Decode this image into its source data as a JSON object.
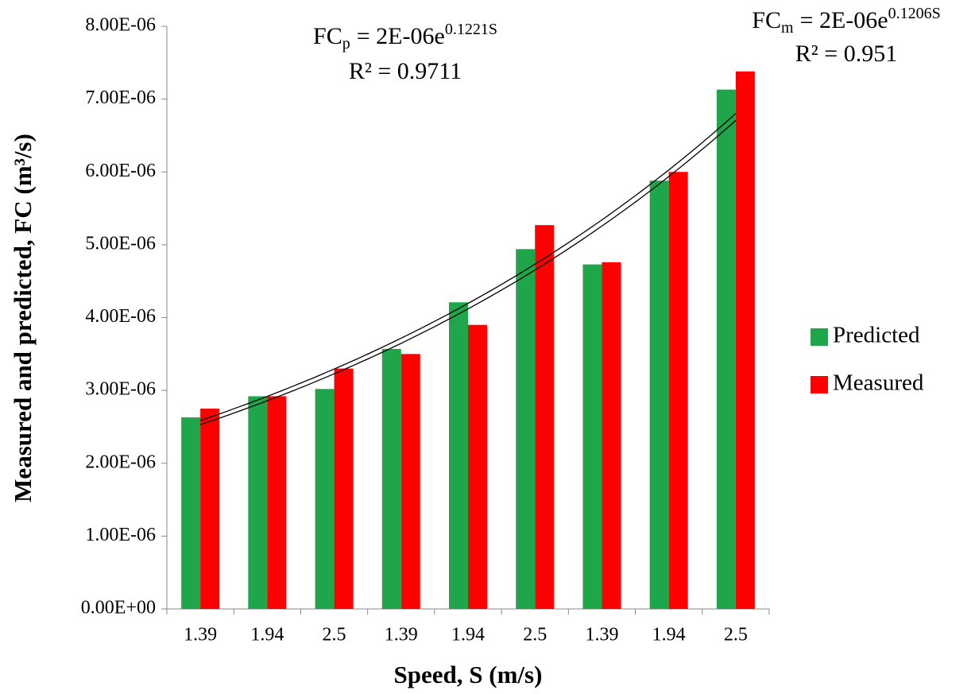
{
  "chart_data": {
    "type": "bar",
    "x_label": "Speed, S (m/s)",
    "y_label": "Measured and predicted, FC  (m³/s)",
    "categories": [
      "1.39",
      "1.94",
      "2.5",
      "1.39",
      "1.94",
      "2.5",
      "1.39",
      "1.94",
      "2.5"
    ],
    "series": [
      {
        "name": "Predicted",
        "color": "#1fa64a",
        "values": [
          2.63e-06,
          2.92e-06,
          3.02e-06,
          3.57e-06,
          4.21e-06,
          4.94e-06,
          4.73e-06,
          5.88e-06,
          7.13e-06
        ]
      },
      {
        "name": "Measured",
        "color": "#ff0000",
        "values": [
          2.75e-06,
          2.92e-06,
          3.3e-06,
          3.5e-06,
          3.9e-06,
          5.27e-06,
          4.76e-06,
          6e-06,
          7.38e-06
        ]
      }
    ],
    "ylim": [
      0,
      8e-06
    ],
    "yticks": [
      {
        "value": 0,
        "label": "0.00E+00"
      },
      {
        "value": 1e-06,
        "label": "1.00E-06"
      },
      {
        "value": 2e-06,
        "label": "2.00E-06"
      },
      {
        "value": 3e-06,
        "label": "3.00E-06"
      },
      {
        "value": 4e-06,
        "label": "4.00E-06"
      },
      {
        "value": 5e-06,
        "label": "5.00E-06"
      },
      {
        "value": 6e-06,
        "label": "6.00E-06"
      },
      {
        "value": 7e-06,
        "label": "7.00E-06"
      },
      {
        "value": 8e-06,
        "label": "8.00E-06"
      }
    ],
    "trendline": "exponential",
    "legend_position": "right",
    "annotations": [
      {
        "label": "FC",
        "subscript": "p",
        "equation": "= 2E-06e",
        "exponent": "0.1221S",
        "r2": "R² = 0.9711"
      },
      {
        "label": "FC",
        "subscript": "m",
        "equation": "= 2E-06e",
        "exponent": "0.1206S",
        "r2": "R² = 0.951"
      }
    ]
  }
}
